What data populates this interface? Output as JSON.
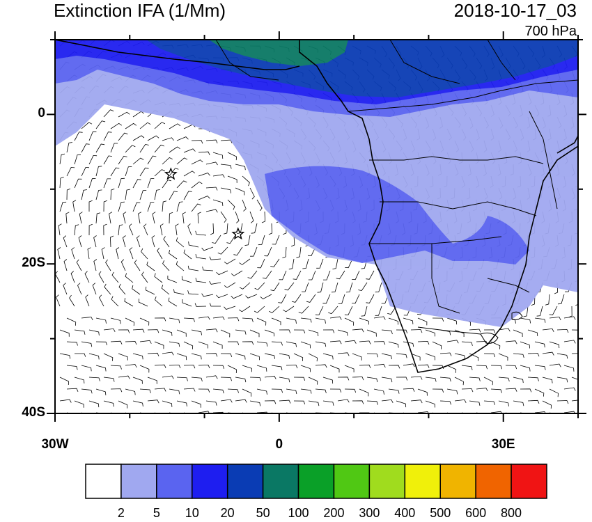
{
  "title": "Extinction IFA (1/Mm)",
  "datetime": "2018-10-17_03",
  "level": "700 hPa",
  "map": {
    "lon_range": [
      -30,
      40
    ],
    "lat_range": [
      -40,
      10
    ],
    "y_ticks": [
      {
        "lat": 0,
        "label": "0"
      },
      {
        "lat": -20,
        "label": "20S"
      },
      {
        "lat": -40,
        "label": "40S"
      }
    ],
    "x_ticks": [
      {
        "lon": -30,
        "label": "30W"
      },
      {
        "lon": 0,
        "label": "0"
      },
      {
        "lon": 30,
        "label": "30E"
      }
    ],
    "markers": [
      {
        "type": "star",
        "lon": -14.5,
        "lat": -8
      },
      {
        "type": "star",
        "lon": -5.5,
        "lat": -16
      }
    ]
  },
  "colorbar": {
    "labels": [
      "2",
      "5",
      "10",
      "20",
      "50",
      "100",
      "200",
      "300",
      "400",
      "500",
      "600",
      "800"
    ],
    "colors": [
      "#ffffff",
      "#a0a8f0",
      "#5a64f0",
      "#1e1ef0",
      "#0a3cb4",
      "#0a7864",
      "#0aa028",
      "#50c814",
      "#a0dc1e",
      "#f0f00a",
      "#f0b400",
      "#f06400",
      "#f01414"
    ]
  }
}
